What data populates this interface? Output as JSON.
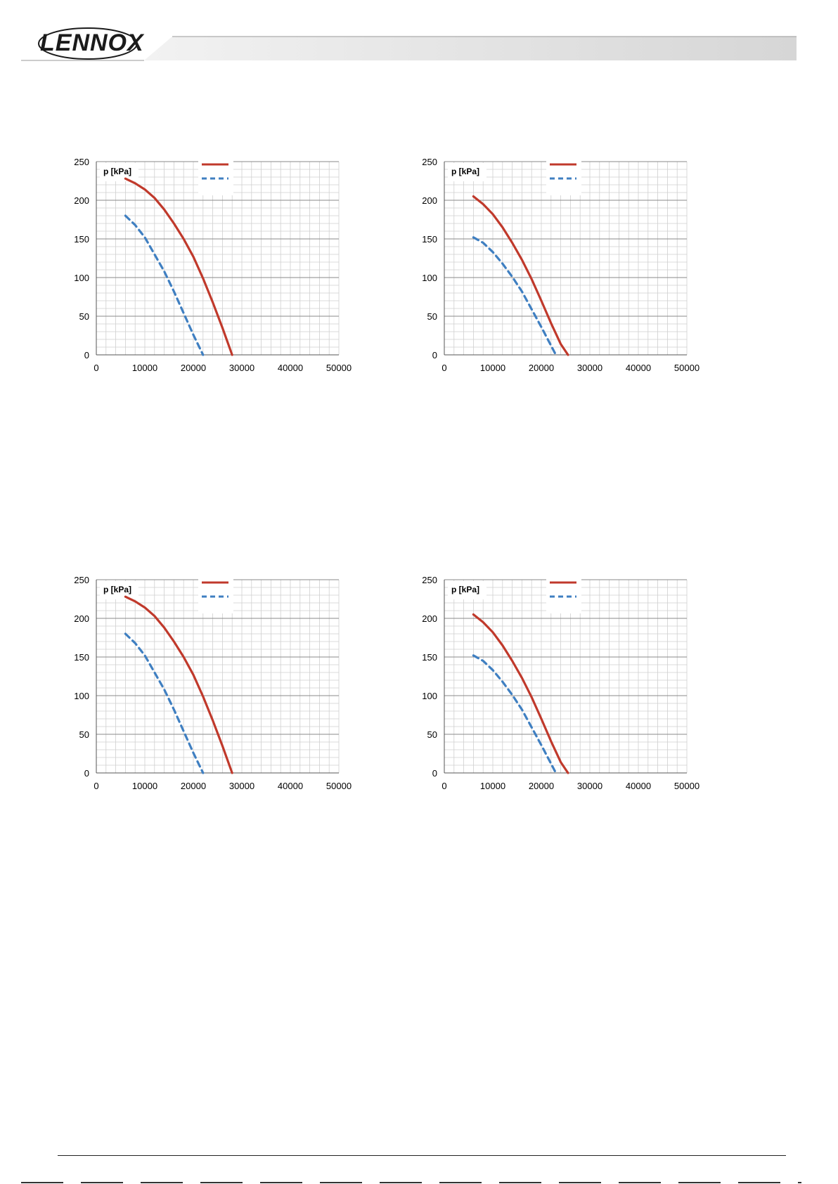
{
  "header": {
    "logo_text": "LENNOX",
    "colors": {
      "bar": "#d9d9d9",
      "text": "#1b1b1b"
    }
  },
  "chart_data": [
    {
      "type": "line",
      "ylabel": "p [kPa]",
      "xlim": [
        0,
        50000
      ],
      "ylim": [
        0,
        250
      ],
      "xticks": [
        0,
        10000,
        20000,
        30000,
        40000,
        50000
      ],
      "yticks": [
        0,
        50,
        100,
        150,
        200,
        250
      ],
      "grid": true,
      "legend": "top-center",
      "series": [
        {
          "color": "#c0392b",
          "style": "solid",
          "x": [
            6000,
            8000,
            10000,
            12000,
            14000,
            16000,
            18000,
            20000,
            22000,
            24000,
            26000,
            28000
          ],
          "y": [
            228,
            222,
            214,
            203,
            188,
            170,
            150,
            127,
            99,
            68,
            35,
            0
          ]
        },
        {
          "color": "#3f7fc1",
          "style": "dashed",
          "x": [
            6000,
            8000,
            10000,
            12000,
            14000,
            16000,
            18000,
            20000,
            22000
          ],
          "y": [
            180,
            168,
            152,
            130,
            108,
            82,
            54,
            26,
            0
          ]
        }
      ]
    },
    {
      "type": "line",
      "ylabel": "p [kPa]",
      "xlim": [
        0,
        50000
      ],
      "ylim": [
        0,
        250
      ],
      "xticks": [
        0,
        10000,
        20000,
        30000,
        40000,
        50000
      ],
      "yticks": [
        0,
        50,
        100,
        150,
        200,
        250
      ],
      "grid": true,
      "legend": "top-center",
      "series": [
        {
          "color": "#c0392b",
          "style": "solid",
          "x": [
            6000,
            8000,
            10000,
            12000,
            14000,
            16000,
            18000,
            20000,
            22000,
            24000,
            25500
          ],
          "y": [
            205,
            195,
            182,
            165,
            145,
            123,
            98,
            70,
            41,
            14,
            0
          ]
        },
        {
          "color": "#3f7fc1",
          "style": "dashed",
          "x": [
            6000,
            8000,
            10000,
            12000,
            14000,
            16000,
            18000,
            20000,
            22000,
            23000
          ],
          "y": [
            152,
            145,
            133,
            118,
            101,
            82,
            59,
            36,
            12,
            0
          ]
        }
      ]
    },
    {
      "type": "line",
      "ylabel": "p [kPa]",
      "xlim": [
        0,
        50000
      ],
      "ylim": [
        0,
        250
      ],
      "xticks": [
        0,
        10000,
        20000,
        30000,
        40000,
        50000
      ],
      "yticks": [
        0,
        50,
        100,
        150,
        200,
        250
      ],
      "grid": true,
      "legend": "top-center",
      "series": [
        {
          "color": "#c0392b",
          "style": "solid",
          "x": [
            6000,
            8000,
            10000,
            12000,
            14000,
            16000,
            18000,
            20000,
            22000,
            24000,
            26000,
            28000
          ],
          "y": [
            228,
            222,
            214,
            203,
            188,
            170,
            150,
            127,
            99,
            68,
            35,
            0
          ]
        },
        {
          "color": "#3f7fc1",
          "style": "dashed",
          "x": [
            6000,
            8000,
            10000,
            12000,
            14000,
            16000,
            18000,
            20000,
            22000
          ],
          "y": [
            180,
            168,
            152,
            130,
            108,
            82,
            54,
            26,
            0
          ]
        }
      ]
    },
    {
      "type": "line",
      "ylabel": "p [kPa]",
      "xlim": [
        0,
        50000
      ],
      "ylim": [
        0,
        250
      ],
      "xticks": [
        0,
        10000,
        20000,
        30000,
        40000,
        50000
      ],
      "yticks": [
        0,
        50,
        100,
        150,
        200,
        250
      ],
      "grid": true,
      "legend": "top-center",
      "series": [
        {
          "color": "#c0392b",
          "style": "solid",
          "x": [
            6000,
            8000,
            10000,
            12000,
            14000,
            16000,
            18000,
            20000,
            22000,
            24000,
            25500
          ],
          "y": [
            205,
            195,
            182,
            165,
            145,
            123,
            98,
            70,
            41,
            14,
            0
          ]
        },
        {
          "color": "#3f7fc1",
          "style": "dashed",
          "x": [
            6000,
            8000,
            10000,
            12000,
            14000,
            16000,
            18000,
            20000,
            22000,
            23000
          ],
          "y": [
            152,
            145,
            133,
            118,
            101,
            82,
            59,
            36,
            12,
            0
          ]
        }
      ]
    }
  ]
}
